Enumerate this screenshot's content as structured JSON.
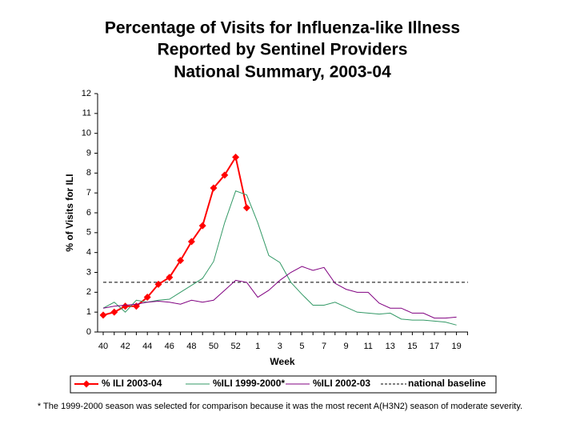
{
  "chart_data": {
    "type": "line",
    "title": [
      "Percentage of Visits for Influenza-like Illness",
      "Reported by Sentinel Providers",
      "National Summary, 2003-04"
    ],
    "x_label": "Week",
    "y_label": "% of Visits for ILI",
    "categories": [
      40,
      null,
      42,
      null,
      44,
      null,
      46,
      null,
      48,
      null,
      50,
      null,
      52,
      null,
      1,
      null,
      3,
      null,
      5,
      null,
      7,
      null,
      9,
      null,
      11,
      null,
      13,
      null,
      15,
      null,
      17,
      null,
      19,
      null
    ],
    "ylim": [
      0,
      12
    ],
    "yticks": [
      0,
      1,
      2,
      3,
      4,
      5,
      6,
      7,
      8,
      9,
      10,
      11,
      12
    ],
    "series": [
      {
        "name": "% ILI 2003-04",
        "color": "#ff0000",
        "marker": "diamond",
        "values": [
          0.85,
          1.0,
          1.3,
          1.3,
          1.75,
          2.4,
          2.75,
          3.6,
          4.55,
          5.35,
          7.25,
          7.9,
          8.8,
          6.25,
          null,
          null,
          null,
          null,
          null,
          null,
          null,
          null,
          null,
          null,
          null,
          null,
          null,
          null,
          null,
          null,
          null,
          null,
          null,
          null
        ]
      },
      {
        "name": "%ILI 1999-2000*",
        "color": "#339966",
        "values": [
          1.2,
          1.5,
          1.0,
          1.6,
          1.5,
          1.6,
          1.65,
          2.0,
          2.35,
          2.7,
          3.55,
          5.5,
          7.1,
          6.9,
          5.5,
          3.85,
          3.5,
          2.5,
          1.9,
          1.35,
          1.35,
          1.5,
          1.25,
          1.0,
          0.95,
          0.9,
          0.95,
          0.65,
          0.6,
          0.6,
          0.55,
          0.5,
          0.35,
          null
        ]
      },
      {
        "name": "%ILI 2002-03",
        "color": "#800080",
        "values": [
          1.2,
          1.3,
          1.35,
          1.4,
          1.5,
          1.55,
          1.5,
          1.4,
          1.6,
          1.5,
          1.6,
          2.1,
          2.6,
          2.5,
          1.75,
          2.1,
          2.6,
          3.0,
          3.3,
          3.1,
          3.25,
          2.45,
          2.15,
          2.0,
          2.0,
          1.45,
          1.2,
          1.2,
          0.95,
          0.95,
          0.7,
          0.7,
          0.75,
          null
        ]
      }
    ],
    "baseline": {
      "name": "national baseline",
      "value": 2.5,
      "color": "#000000"
    },
    "footnote": "* The 1999-2000 season was selected for comparison because it was the most recent A(H3N2) season of moderate severity."
  }
}
